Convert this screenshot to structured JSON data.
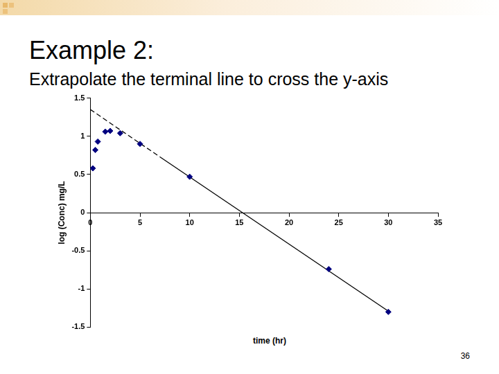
{
  "chart_data": {
    "type": "scatter",
    "title": "Example 2:",
    "subtitle": "Extrapolate the terminal line to cross the y-axis",
    "x_label": "time (hr)",
    "y_label": "log (Conc) mg/L",
    "series": [
      {
        "type": "scatter",
        "color": "#000080",
        "marker": "diamond",
        "x": [
          0.25,
          0.5,
          0.75,
          1.5,
          2,
          3,
          5,
          10,
          24,
          30
        ],
        "values": [
          0.58,
          0.82,
          0.93,
          1.06,
          1.07,
          1.04,
          0.9,
          0.47,
          -0.74,
          -1.3
        ]
      },
      {
        "type": "line",
        "color": "#000000",
        "line_style": "dashed",
        "x": [
          0,
          7
        ],
        "values": [
          1.35,
          0.73
        ]
      },
      {
        "type": "line",
        "color": "#000000",
        "line_style": "solid",
        "x": [
          7,
          30
        ],
        "values": [
          0.73,
          -1.29
        ]
      }
    ],
    "xlim": [
      0,
      35
    ],
    "xticks": [
      0,
      5,
      10,
      15,
      20,
      25,
      30,
      35
    ],
    "ylim": [
      -1.5,
      1.5
    ],
    "yticks": [
      -1.5,
      -1,
      -0.5,
      0,
      0.5,
      1,
      1.5
    ],
    "grid": false
  },
  "footer": {
    "page_number": 36
  }
}
